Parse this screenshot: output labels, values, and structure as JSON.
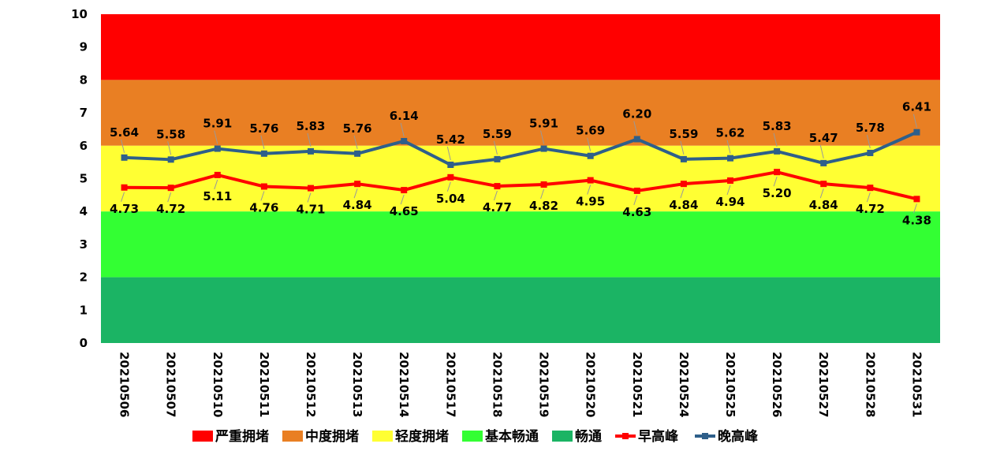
{
  "chart_data": {
    "type": "line",
    "title": "",
    "xlabel": "",
    "ylabel": "",
    "ylim": [
      0,
      10
    ],
    "yticks": [
      "0",
      "1",
      "2",
      "3",
      "4",
      "5",
      "6",
      "7",
      "8",
      "9",
      "10"
    ],
    "categories": [
      "20210506",
      "20210507",
      "20210510",
      "20210511",
      "20210512",
      "20210513",
      "20210514",
      "20210517",
      "20210518",
      "20210519",
      "20210520",
      "20210521",
      "20210524",
      "20210525",
      "20210526",
      "20210527",
      "20210528",
      "20210531"
    ],
    "bands": [
      {
        "name": "严重拥堵",
        "from": 8,
        "to": 10,
        "color": "#ff0000"
      },
      {
        "name": "中度拥堵",
        "from": 6,
        "to": 8,
        "color": "#e97f23"
      },
      {
        "name": "轻度拥堵",
        "from": 4,
        "to": 6,
        "color": "#ffff33"
      },
      {
        "name": "基本畅通",
        "from": 2,
        "to": 4,
        "color": "#33ff33"
      },
      {
        "name": "畅通",
        "from": 0,
        "to": 2,
        "color": "#1bb464"
      }
    ],
    "series": [
      {
        "name": "早高峰",
        "color": "#ff0000",
        "values": [
          4.73,
          4.72,
          5.11,
          4.76,
          4.71,
          4.84,
          4.65,
          5.04,
          4.77,
          4.82,
          4.95,
          4.63,
          4.84,
          4.94,
          5.2,
          4.84,
          4.72,
          4.38
        ],
        "labels": [
          "4.73",
          "4.72",
          "5.11",
          "4.76",
          "4.71",
          "4.84",
          "4.65",
          "5.04",
          "4.77",
          "4.82",
          "4.95",
          "4.63",
          "4.84",
          "4.94",
          "5.20",
          "4.84",
          "4.72",
          "4.38"
        ]
      },
      {
        "name": "晚高峰",
        "color": "#2e5f8a",
        "values": [
          5.64,
          5.58,
          5.91,
          5.76,
          5.83,
          5.76,
          6.14,
          5.42,
          5.59,
          5.91,
          5.69,
          6.2,
          5.59,
          5.62,
          5.83,
          5.47,
          5.78,
          6.41
        ],
        "labels": [
          "5.64",
          "5.58",
          "5.91",
          "5.76",
          "5.83",
          "5.76",
          "6.14",
          "5.42",
          "5.59",
          "5.91",
          "5.69",
          "6.20",
          "5.59",
          "5.62",
          "5.83",
          "5.47",
          "5.78",
          "6.41"
        ]
      }
    ],
    "legend": {
      "position": "bottom",
      "items": [
        {
          "name": "严重拥堵",
          "kind": "band",
          "color": "#ff0000"
        },
        {
          "name": "中度拥堵",
          "kind": "band",
          "color": "#e97f23"
        },
        {
          "name": "轻度拥堵",
          "kind": "band",
          "color": "#ffff33"
        },
        {
          "name": "基本畅通",
          "kind": "band",
          "color": "#33ff33"
        },
        {
          "name": "畅通",
          "kind": "band",
          "color": "#1bb464"
        },
        {
          "name": "早高峰",
          "kind": "line",
          "color": "#ff0000"
        },
        {
          "name": "晚高峰",
          "kind": "line",
          "color": "#2e5f8a"
        }
      ]
    }
  }
}
